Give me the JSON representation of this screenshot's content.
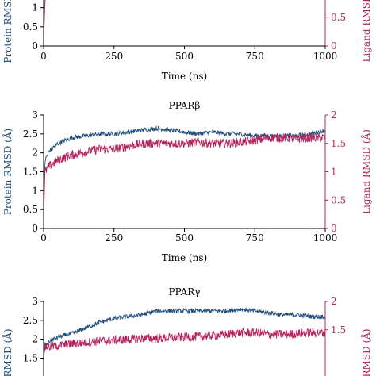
{
  "chart_data": [
    {
      "type": "line",
      "title": "",
      "xlabel": "Time (ns)",
      "ylabel_left": "Protein RMSD (Å)",
      "ylabel_right": "Ligand RMSD (Å)",
      "xlim": [
        0,
        1000
      ],
      "ylim_left": [
        0,
        3
      ],
      "ylim_right": [
        0,
        2
      ],
      "xticks": [
        0,
        250,
        500,
        750,
        1000
      ],
      "yticks_left": [
        0,
        0.5,
        1
      ],
      "yticks_right": [
        0,
        0.5
      ],
      "grid": false,
      "series": [
        {
          "axis": "left",
          "color": "#1f4e7a",
          "x": [
            0,
            2,
            5,
            10
          ],
          "values": [
            0,
            0.6,
            1.2,
            1.6
          ]
        },
        {
          "axis": "right",
          "color": "#b5245e",
          "x": [
            0,
            2,
            5,
            10
          ],
          "values": [
            0,
            0.4,
            0.8,
            1.0
          ]
        }
      ]
    },
    {
      "type": "line",
      "title": "PPARβ",
      "xlabel": "Time (ns)",
      "ylabel_left": "Protein RMSD (Å)",
      "ylabel_right": "Ligand RMSD (Å)",
      "xlim": [
        0,
        1000
      ],
      "ylim_left": [
        0,
        3
      ],
      "ylim_right": [
        0,
        2
      ],
      "xticks": [
        0,
        250,
        500,
        750,
        1000
      ],
      "yticks_left": [
        0,
        0.5,
        1,
        1.5,
        2,
        2.5,
        3
      ],
      "yticks_right": [
        0,
        0.5,
        1,
        1.5,
        2
      ],
      "grid": false,
      "series": [
        {
          "axis": "left",
          "color": "#1f4e7a",
          "x": [
            0,
            5,
            20,
            50,
            100,
            150,
            200,
            250,
            300,
            350,
            400,
            450,
            500,
            550,
            600,
            650,
            700,
            750,
            800,
            850,
            900,
            950,
            1000
          ],
          "values": [
            0.5,
            1.8,
            2.05,
            2.25,
            2.4,
            2.45,
            2.5,
            2.5,
            2.55,
            2.6,
            2.65,
            2.6,
            2.55,
            2.5,
            2.55,
            2.5,
            2.5,
            2.45,
            2.45,
            2.45,
            2.45,
            2.5,
            2.6
          ]
        },
        {
          "axis": "right",
          "color": "#b5245e",
          "x": [
            0,
            5,
            20,
            50,
            100,
            150,
            200,
            250,
            300,
            350,
            400,
            450,
            500,
            550,
            600,
            650,
            700,
            750,
            800,
            850,
            900,
            950,
            1000
          ],
          "values": [
            0.2,
            1.0,
            1.1,
            1.2,
            1.3,
            1.35,
            1.4,
            1.4,
            1.45,
            1.5,
            1.5,
            1.5,
            1.5,
            1.52,
            1.5,
            1.5,
            1.52,
            1.55,
            1.6,
            1.6,
            1.58,
            1.6,
            1.6
          ]
        }
      ]
    },
    {
      "type": "line",
      "title": "PPARγ",
      "xlabel": "",
      "ylabel_left": "RMSD (Å)",
      "ylabel_right": "RMSD (Å)",
      "xlim": [
        0,
        1000
      ],
      "ylim_left": [
        0,
        3
      ],
      "ylim_right": [
        0,
        2
      ],
      "yticks_left": [
        1.5,
        2,
        2.5,
        3
      ],
      "yticks_right": [
        1.5,
        2
      ],
      "grid": false,
      "series": [
        {
          "axis": "left",
          "color": "#1f4e7a",
          "x": [
            0,
            5,
            20,
            50,
            100,
            150,
            200,
            250,
            300,
            350,
            400,
            450,
            500,
            550,
            600,
            650,
            700,
            750,
            800,
            850,
            900,
            950,
            1000
          ],
          "values": [
            1.5,
            1.8,
            1.95,
            2.05,
            2.15,
            2.3,
            2.45,
            2.55,
            2.6,
            2.65,
            2.75,
            2.75,
            2.75,
            2.75,
            2.75,
            2.75,
            2.8,
            2.75,
            2.7,
            2.65,
            2.65,
            2.6,
            2.6
          ]
        },
        {
          "axis": "right",
          "color": "#b5245e",
          "x": [
            0,
            5,
            20,
            50,
            100,
            150,
            200,
            250,
            300,
            350,
            400,
            450,
            500,
            550,
            600,
            650,
            700,
            750,
            800,
            850,
            900,
            950,
            1000
          ],
          "values": [
            1.1,
            1.2,
            1.2,
            1.22,
            1.25,
            1.28,
            1.3,
            1.32,
            1.33,
            1.35,
            1.35,
            1.36,
            1.37,
            1.38,
            1.4,
            1.42,
            1.45,
            1.45,
            1.42,
            1.42,
            1.43,
            1.45,
            1.45
          ]
        }
      ]
    }
  ]
}
